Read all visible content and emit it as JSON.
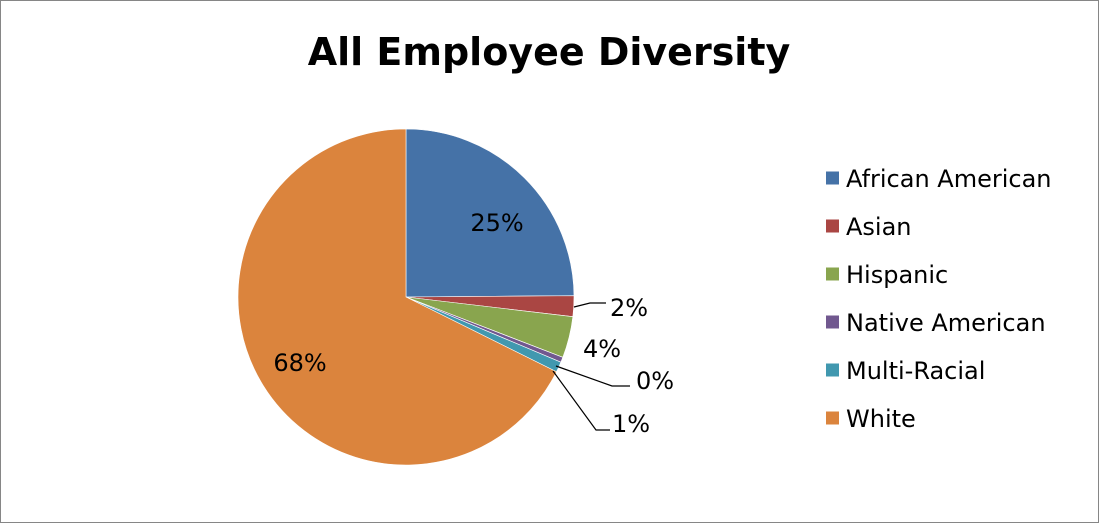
{
  "chart_data": {
    "type": "pie",
    "title": "All Employee Diversity",
    "categories": [
      "African American",
      "Asian",
      "Hispanic",
      "Native American",
      "Multi-Racial",
      "White"
    ],
    "values": [
      25,
      2,
      4,
      0,
      1,
      68
    ],
    "labels": [
      "25%",
      "2%",
      "4%",
      "0%",
      "1%",
      "68%"
    ],
    "colors": [
      "#4572A7",
      "#AA4643",
      "#89A54E",
      "#71588F",
      "#4198AF",
      "#DB843D"
    ],
    "legend_position": "right"
  }
}
